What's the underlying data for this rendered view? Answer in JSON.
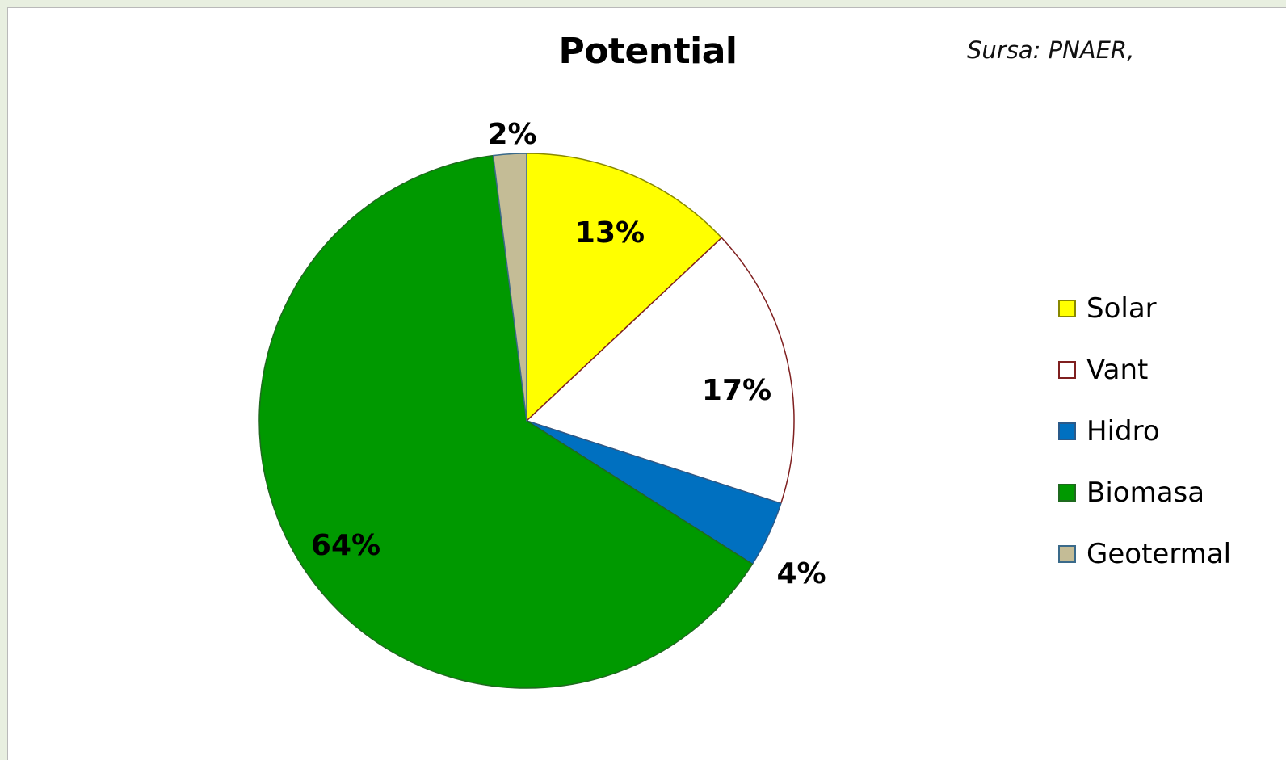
{
  "chart_data": {
    "type": "pie",
    "title": "Potential",
    "annotation": "Sursa: PNAER,",
    "categories": [
      "Solar",
      "Vant",
      "Hidro",
      "Biomasa",
      "Geotermal"
    ],
    "values": [
      13,
      17,
      4,
      64,
      2
    ],
    "labels": [
      "13%",
      "17%",
      "4%",
      "64%",
      "2%"
    ],
    "colors": [
      "#ffff00",
      "#ffffff",
      "#0070c0",
      "#009900",
      "#c4bc96"
    ],
    "edge_colors": [
      "#888800",
      "#7f1f1f",
      "#2a5a8a",
      "#1f6a1f",
      "#3a6a8a"
    ],
    "legend_position": "right"
  }
}
